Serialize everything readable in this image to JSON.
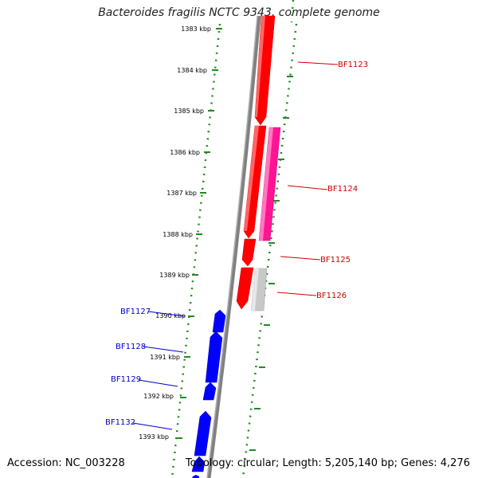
{
  "title": "Bacteroides fragilis NCTC 9343, complete genome",
  "footer": {
    "accession": "Accession: NC_003228",
    "stats": "Topology: circular; Length: 5,205,140 bp; Genes: 4,276"
  },
  "ticks": [
    "1383 kbp",
    "1384 kbp",
    "1385 kbp",
    "1386 kbp",
    "1387 kbp",
    "1388 kbp",
    "1389 kbp",
    "1390 kbp",
    "1391 kbp",
    "1392 kbp",
    "1393 kbp"
  ],
  "genes": [
    {
      "name": "BF1123",
      "strand": "minus",
      "color": "#ff0000"
    },
    {
      "name": "BF1124",
      "strand": "plus",
      "color": "#ff1493"
    },
    {
      "name": "BF1125",
      "strand": "minus",
      "color": "#ff0000"
    },
    {
      "name": "BF1126",
      "strand": "minus",
      "color": "#c0c0c0"
    },
    {
      "name": "BF1127",
      "strand": "plus",
      "color": "#0000ff"
    },
    {
      "name": "BF1128",
      "strand": "plus",
      "color": "#0000ff"
    },
    {
      "name": "BF1129",
      "strand": "plus",
      "color": "#0000ff"
    },
    {
      "name": "BF1132",
      "strand": "plus",
      "color": "#0000ff"
    }
  ],
  "colors": {
    "backbone": "#808080",
    "dotted_track": "#228b22",
    "label_red": "#cc0000",
    "label_blue": "#0000cc"
  }
}
